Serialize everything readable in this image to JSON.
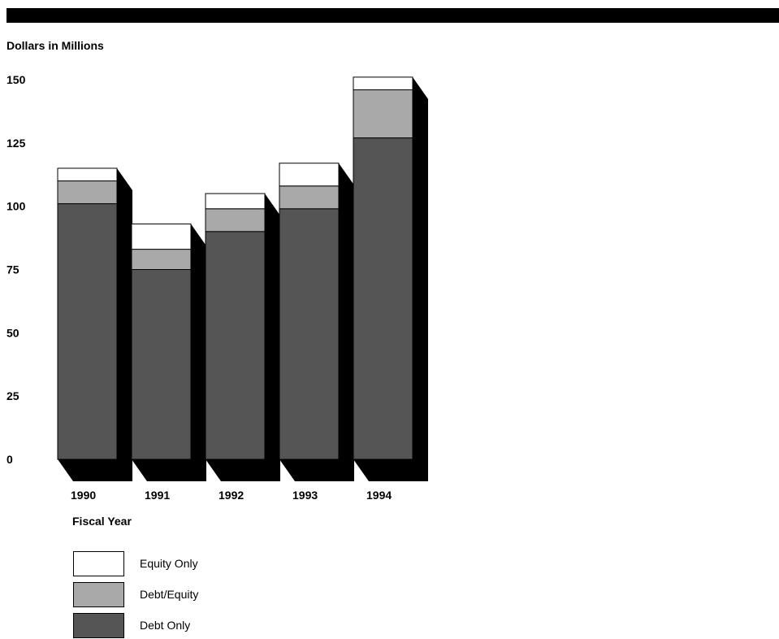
{
  "chart_data": {
    "type": "bar",
    "stacked": true,
    "three_d": true,
    "ylabel": "Dollars in Millions",
    "xlabel": "Fiscal Year",
    "categories": [
      "1990",
      "1991",
      "1992",
      "1993",
      "1994"
    ],
    "ylim": [
      0,
      150
    ],
    "yticks": [
      0,
      25,
      50,
      75,
      100,
      125,
      150
    ],
    "grid": false,
    "legend_position": "bottom-left",
    "series": [
      {
        "name": "Debt Only",
        "values": [
          101,
          75,
          90,
          99,
          127
        ],
        "color": "#555555"
      },
      {
        "name": "Debt/Equity",
        "values": [
          9,
          8,
          9,
          9,
          19
        ],
        "color": "#a9a9a9"
      },
      {
        "name": "Equity Only",
        "values": [
          5,
          10,
          6,
          9,
          5
        ],
        "color": "#ffffff"
      }
    ]
  }
}
